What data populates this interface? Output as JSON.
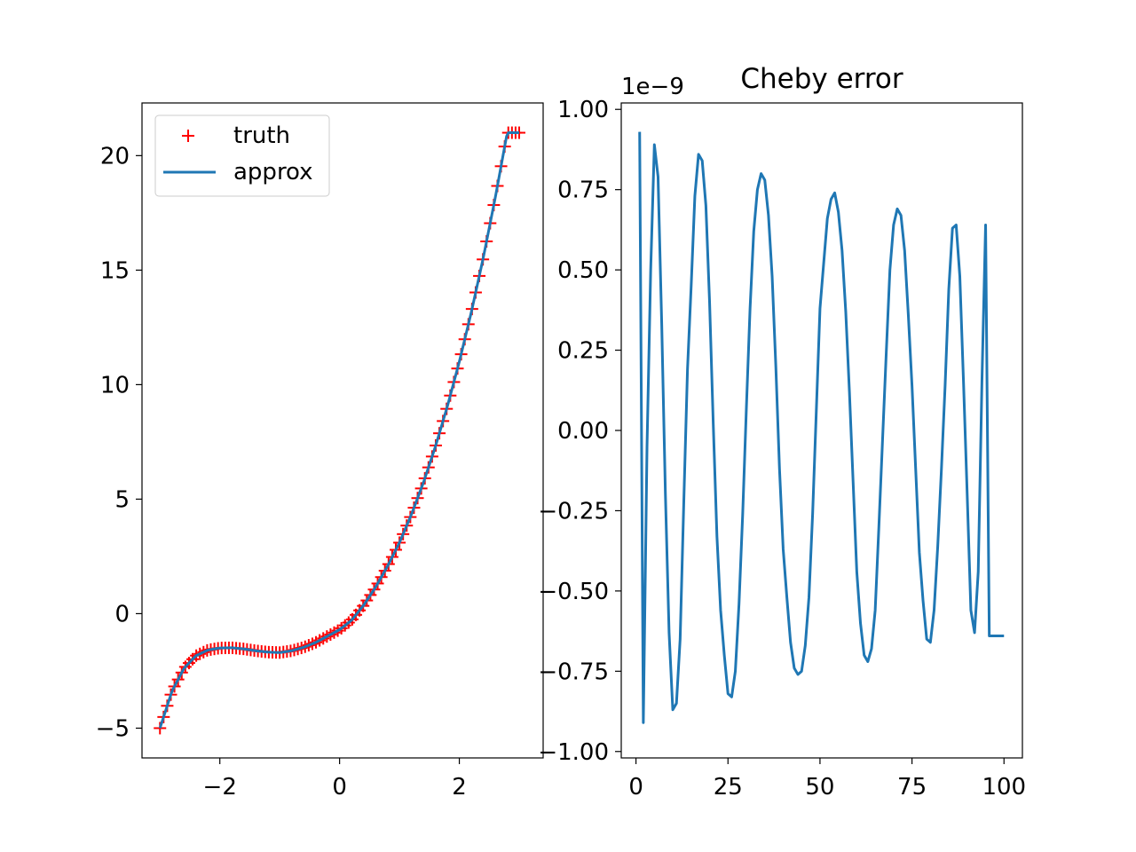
{
  "chart_data": [
    {
      "type": "line",
      "title": "",
      "xlabel": "",
      "ylabel": "",
      "xlim": [
        -3.3,
        3.4
      ],
      "ylim": [
        -6.3,
        22.3
      ],
      "xticks": [
        -2,
        0,
        2
      ],
      "xtick_labels": [
        "−2",
        "0",
        "2"
      ],
      "yticks": [
        -5,
        0,
        5,
        10,
        15,
        20
      ],
      "ytick_labels": [
        "−5",
        "0",
        "5",
        "10",
        "15",
        "20"
      ],
      "grid": false,
      "legend_position": "upper-left",
      "series": [
        {
          "name": "truth",
          "style": "markers",
          "marker": "+",
          "color": "#ff0000",
          "x": [
            -3.0,
            -2.8,
            -2.6,
            -2.4,
            -2.2,
            -2.0,
            -1.8,
            -1.6,
            -1.4,
            -1.2,
            -1.0,
            -0.8,
            -0.6,
            -0.4,
            -0.2,
            0.0,
            0.2,
            0.4,
            0.6,
            0.8,
            1.0,
            1.2,
            1.4,
            1.6,
            1.8,
            2.0,
            2.2,
            2.4,
            2.6,
            2.8,
            3.0
          ],
          "y": [
            -5.0,
            -3.39,
            -2.39,
            -1.84,
            -1.59,
            -1.5,
            -1.49,
            -1.54,
            -1.62,
            -1.68,
            -1.7,
            -1.62,
            -1.47,
            -1.26,
            -0.98,
            -0.7,
            -0.29,
            0.36,
            1.15,
            2.07,
            3.1,
            4.33,
            5.72,
            7.29,
            9.05,
            11.0,
            13.16,
            15.54,
            18.16,
            21.0,
            21.0
          ],
          "n_markers": 100
        },
        {
          "name": "approx",
          "style": "line",
          "color": "#1f77b4",
          "x": [
            -3.0,
            -2.8,
            -2.6,
            -2.4,
            -2.2,
            -2.0,
            -1.8,
            -1.6,
            -1.4,
            -1.2,
            -1.0,
            -0.8,
            -0.6,
            -0.4,
            -0.2,
            0.0,
            0.2,
            0.4,
            0.6,
            0.8,
            1.0,
            1.2,
            1.4,
            1.6,
            1.8,
            2.0,
            2.2,
            2.4,
            2.6,
            2.8,
            3.0
          ],
          "y": [
            -5.0,
            -3.39,
            -2.39,
            -1.84,
            -1.59,
            -1.5,
            -1.49,
            -1.54,
            -1.62,
            -1.68,
            -1.7,
            -1.62,
            -1.47,
            -1.26,
            -0.98,
            -0.7,
            -0.29,
            0.36,
            1.15,
            2.07,
            3.1,
            4.33,
            5.72,
            7.29,
            9.05,
            11.0,
            13.16,
            15.54,
            18.16,
            21.0,
            21.0
          ]
        }
      ]
    },
    {
      "type": "line",
      "title": "Cheby error",
      "xlabel": "",
      "ylabel": "",
      "offset_label": "1e−9",
      "xlim": [
        -4.0,
        105.0
      ],
      "ylim": [
        -1.02,
        1.02
      ],
      "xticks": [
        0,
        25,
        50,
        75,
        100
      ],
      "xtick_labels": [
        "0",
        "25",
        "50",
        "75",
        "100"
      ],
      "yticks": [
        1.0,
        0.75,
        0.5,
        0.25,
        0.0,
        -0.25,
        -0.5,
        -0.75,
        -1.0
      ],
      "ytick_labels": [
        "1.00",
        "0.75",
        "0.50",
        "0.25",
        "0.00",
        "−0.25",
        "−0.50",
        "−0.75",
        "−1.00"
      ],
      "grid": false,
      "series": [
        {
          "name": "",
          "color": "#1f77b4",
          "x": [
            1,
            2,
            3,
            4,
            5,
            6,
            7,
            8,
            9,
            10,
            11,
            12,
            13,
            14,
            15,
            16,
            17,
            18,
            19,
            20,
            21,
            22,
            23,
            24,
            25,
            26,
            27,
            28,
            29,
            30,
            31,
            32,
            33,
            34,
            35,
            36,
            37,
            38,
            39,
            40,
            41,
            42,
            43,
            44,
            45,
            46,
            47,
            48,
            49,
            50,
            51,
            52,
            53,
            54,
            55,
            56,
            57,
            58,
            59,
            60,
            61,
            62,
            63,
            64,
            65,
            66,
            67,
            68,
            69,
            70,
            71,
            72,
            73,
            74,
            75,
            76,
            77,
            78,
            79,
            80,
            81,
            82,
            83,
            84,
            85,
            86,
            87,
            88,
            89,
            90,
            91,
            92,
            93,
            94,
            95,
            96,
            97,
            98,
            99,
            100
          ],
          "y": [
            0.93,
            -0.91,
            -0.05,
            0.5,
            0.89,
            0.79,
            0.33,
            -0.2,
            -0.63,
            -0.87,
            -0.85,
            -0.65,
            -0.22,
            0.19,
            0.45,
            0.73,
            0.86,
            0.84,
            0.7,
            0.4,
            0.02,
            -0.33,
            -0.56,
            -0.7,
            -0.82,
            -0.83,
            -0.75,
            -0.54,
            -0.26,
            0.07,
            0.38,
            0.62,
            0.75,
            0.8,
            0.78,
            0.67,
            0.48,
            0.2,
            -0.12,
            -0.37,
            -0.52,
            -0.66,
            -0.74,
            -0.76,
            -0.75,
            -0.67,
            -0.52,
            -0.26,
            0.06,
            0.38,
            0.52,
            0.66,
            0.72,
            0.74,
            0.68,
            0.56,
            0.37,
            0.12,
            -0.16,
            -0.44,
            -0.6,
            -0.7,
            -0.72,
            -0.68,
            -0.56,
            -0.3,
            -0.03,
            0.24,
            0.5,
            0.64,
            0.69,
            0.67,
            0.56,
            0.36,
            0.14,
            -0.12,
            -0.38,
            -0.53,
            -0.65,
            -0.66,
            -0.56,
            -0.36,
            -0.12,
            0.14,
            0.44,
            0.63,
            0.64,
            0.48,
            0.15,
            -0.2,
            -0.56,
            -0.63,
            -0.44,
            0.15,
            0.64,
            -0.64,
            -0.64,
            -0.64,
            -0.64,
            -0.64
          ]
        }
      ]
    }
  ]
}
